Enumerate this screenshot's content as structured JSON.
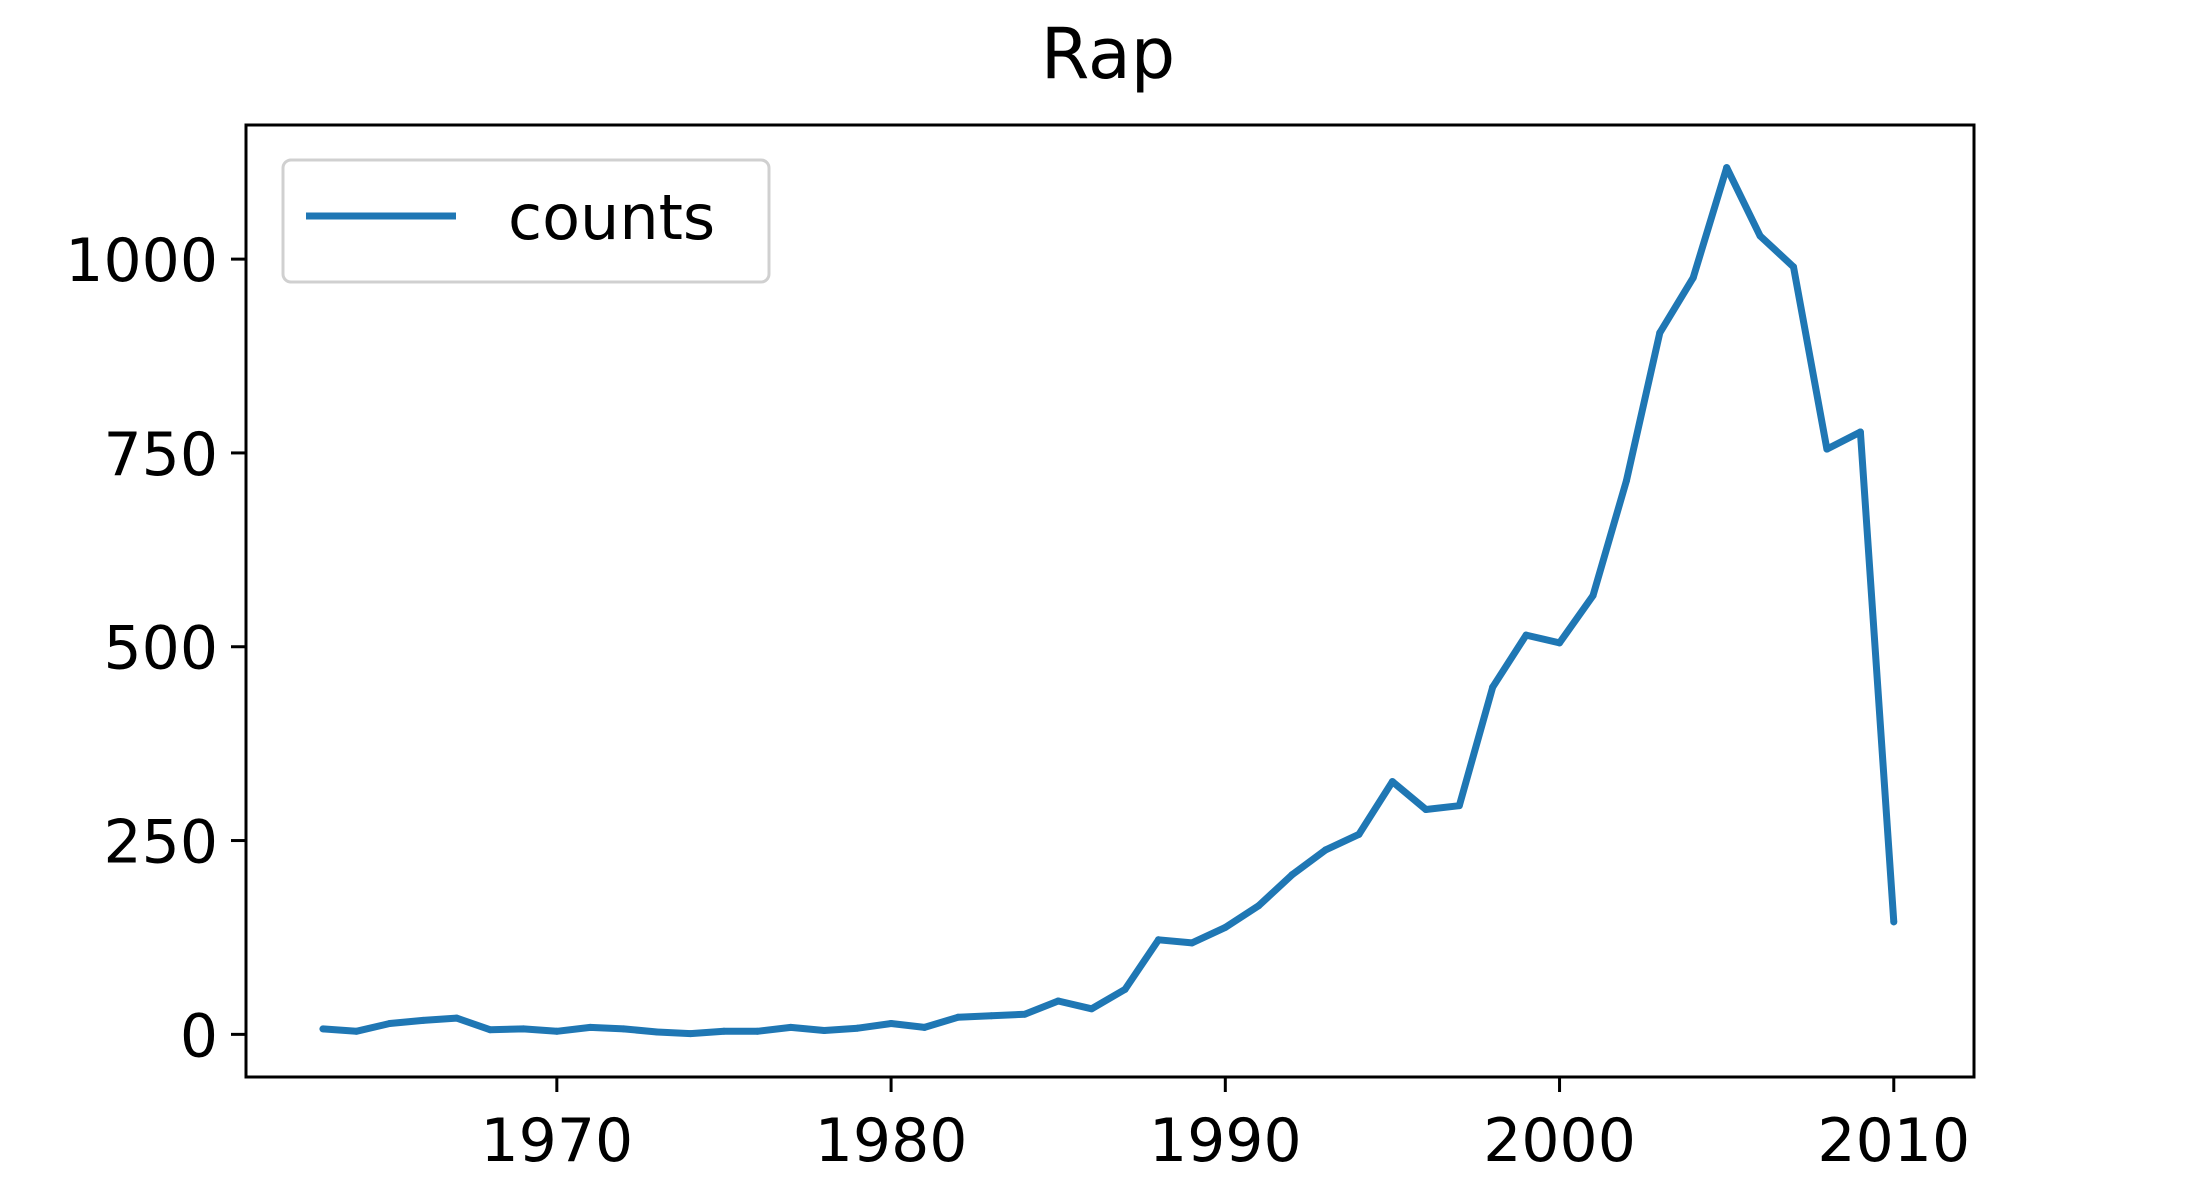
{
  "chart_data": {
    "type": "line",
    "title": "Rap",
    "xlabel": "",
    "ylabel": "",
    "x": [
      1963,
      1964,
      1965,
      1966,
      1967,
      1968,
      1969,
      1970,
      1971,
      1972,
      1973,
      1974,
      1975,
      1976,
      1977,
      1978,
      1979,
      1980,
      1981,
      1982,
      1983,
      1984,
      1985,
      1986,
      1987,
      1988,
      1989,
      1990,
      1991,
      1992,
      1993,
      1994,
      1995,
      1996,
      1997,
      1998,
      1999,
      2000,
      2001,
      2002,
      2003,
      2004,
      2005,
      2006,
      2007,
      2008,
      2009,
      2010
    ],
    "series": [
      {
        "name": "counts",
        "color": "#1f77b4",
        "values": [
          7,
          4,
          14,
          18,
          21,
          6,
          7,
          4,
          9,
          7,
          3,
          1,
          4,
          4,
          9,
          5,
          8,
          14,
          9,
          22,
          24,
          26,
          43,
          33,
          58,
          122,
          118,
          138,
          166,
          206,
          238,
          258,
          326,
          290,
          295,
          448,
          515,
          505,
          566,
          714,
          905,
          976,
          1118,
          1030,
          990,
          755,
          777,
          145
        ]
      }
    ],
    "xlim": [
      1960.7,
      2012.4
    ],
    "ylim": [
      -55,
      1173
    ],
    "xticks": [
      1970,
      1980,
      1990,
      2000,
      2010
    ],
    "yticks": [
      0,
      250,
      500,
      750,
      1000
    ],
    "grid": false,
    "legend": {
      "position": "top-left",
      "entries": [
        "counts"
      ]
    }
  }
}
